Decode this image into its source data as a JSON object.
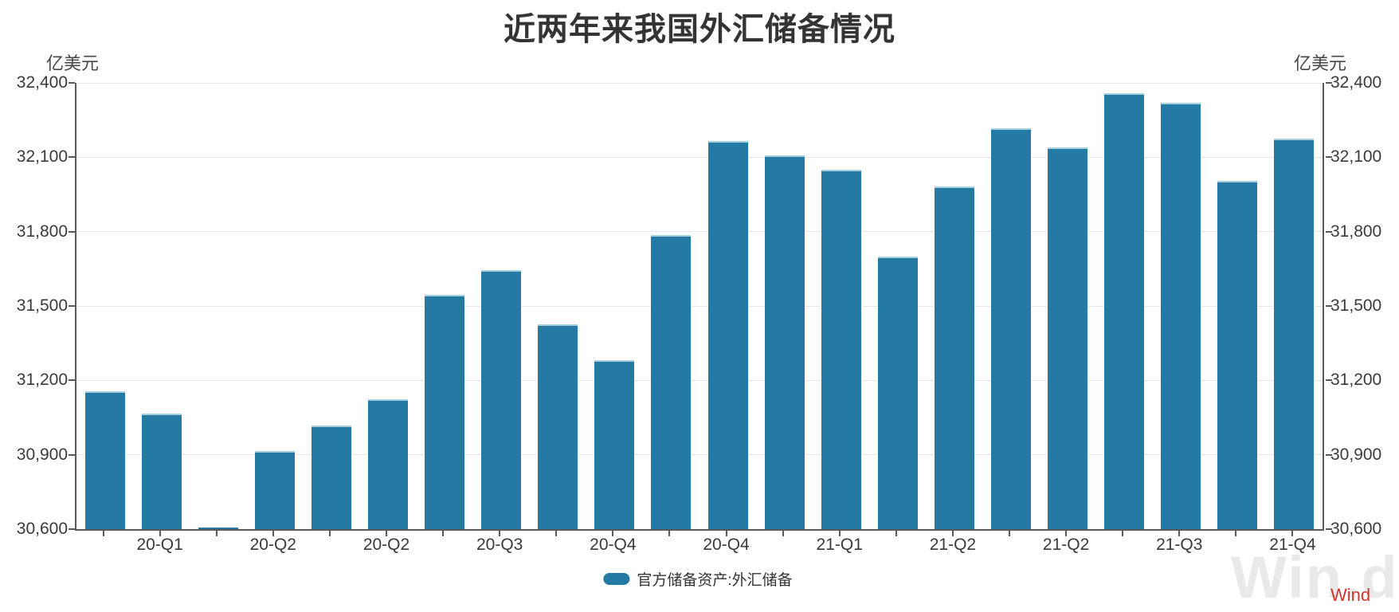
{
  "title": "近两年来我国外汇储备情况",
  "y_axis": {
    "unit": "亿美元",
    "ticks": [
      32400,
      32100,
      31800,
      31500,
      31200,
      30900,
      30600
    ]
  },
  "legend": {
    "label": "官方储备资产:外汇储备"
  },
  "watermark": {
    "logo_text": "Win.d",
    "brand_text": "Wind"
  },
  "colors": {
    "bar": "#247aa3",
    "bar_cap": "#a5cede",
    "grid": "#e8e8e8",
    "axis": "#5a5a5a",
    "tick_text": "#3a3a3a",
    "title_text": "#343434",
    "watermark_gray": "#e9e9e9",
    "watermark_red": "#d2342c"
  },
  "chart_data": {
    "type": "bar",
    "title": "近两年来我国外汇储备情况",
    "ylabel": "亿美元",
    "series_name": "官方储备资产:外汇储备",
    "months": [
      "2020-01",
      "2020-02",
      "2020-03",
      "2020-04",
      "2020-05",
      "2020-06",
      "2020-07",
      "2020-08",
      "2020-09",
      "2020-10",
      "2020-11",
      "2020-12",
      "2021-01",
      "2021-02",
      "2021-03",
      "2021-04",
      "2021-05",
      "2021-06",
      "2021-07",
      "2021-08",
      "2021-09",
      "2021-10"
    ],
    "values": [
      31155,
      31067,
      30606,
      30915,
      31017,
      31123,
      31544,
      31646,
      31426,
      31280,
      31785,
      32165,
      32107,
      32050,
      31700,
      31982,
      32218,
      32140,
      32359,
      32321,
      32006,
      32176
    ],
    "ylim": [
      30600,
      32400
    ],
    "yticks": [
      30600,
      30900,
      31200,
      31500,
      31800,
      32100,
      32400
    ],
    "xticks": [
      {
        "bar": 1,
        "label": "20-Q1"
      },
      {
        "bar": 3,
        "label": "20-Q2"
      },
      {
        "bar": 5,
        "label": "20-Q2"
      },
      {
        "bar": 7,
        "label": "20-Q3"
      },
      {
        "bar": 9,
        "label": "20-Q4"
      },
      {
        "bar": 11,
        "label": "20-Q4"
      },
      {
        "bar": 13,
        "label": "21-Q1"
      },
      {
        "bar": 15,
        "label": "21-Q2"
      },
      {
        "bar": 17,
        "label": "21-Q2"
      },
      {
        "bar": 19,
        "label": "21-Q3"
      },
      {
        "bar": 21,
        "label": "21-Q4"
      }
    ],
    "grid": true,
    "legend_position": "bottom"
  }
}
